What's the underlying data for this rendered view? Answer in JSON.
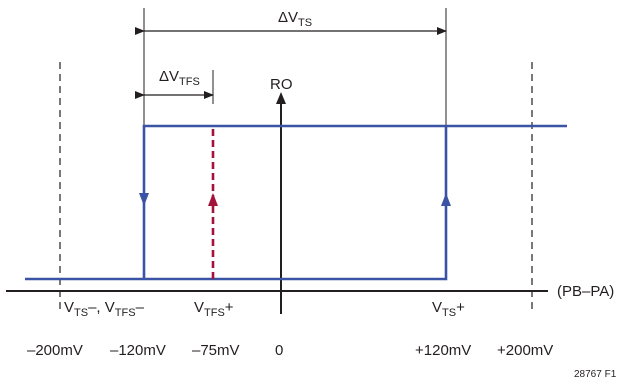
{
  "labels": {
    "delta_vts": {
      "main": "ΔV",
      "sub": "TS"
    },
    "delta_vtfs": {
      "main": "ΔV",
      "sub": "TFS"
    },
    "ro": "RO",
    "axis_label": "(PB–PA)",
    "vts_minus_vtfs_minus": {
      "a_main": "V",
      "a_sub": "TS",
      "a_tail": "–, ",
      "b_main": "V",
      "b_sub": "TFS",
      "b_tail": "–"
    },
    "vtfs_plus": {
      "main": "V",
      "sub": "TFS",
      "tail": "+"
    },
    "vts_plus": {
      "main": "V",
      "sub": "TS",
      "tail": "+"
    },
    "ticks": [
      "–200mV",
      "–120mV",
      "–75mV",
      "0",
      "+120mV",
      "+200mV"
    ],
    "figure_id": "28767 F1"
  },
  "colors": {
    "hysteresis": "#3a53a4",
    "failsafe": "#a3123a",
    "ink": "#231f20"
  }
}
